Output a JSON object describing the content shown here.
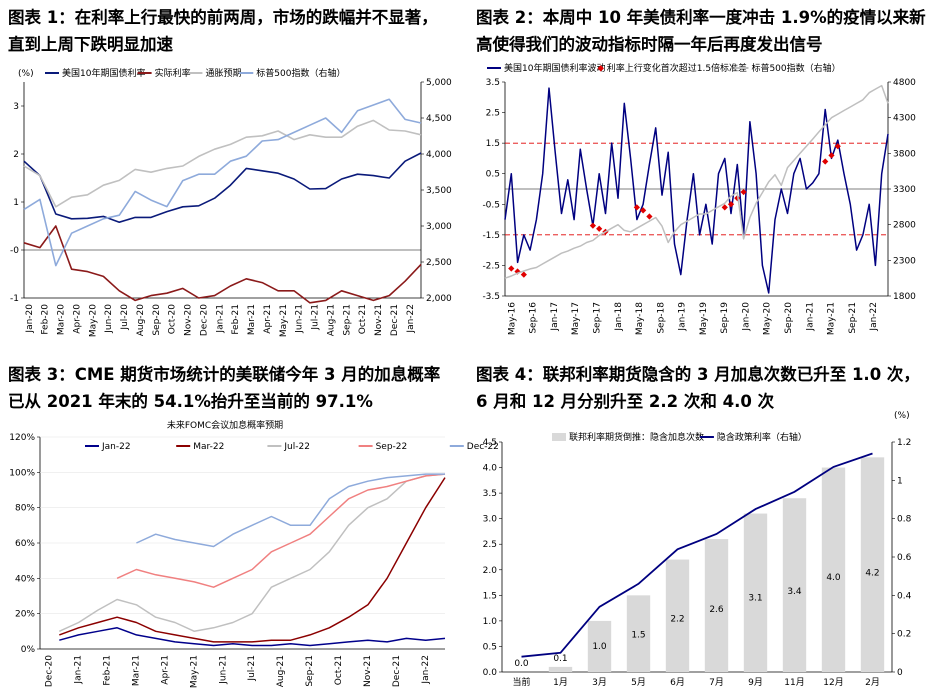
{
  "panels": {
    "p1": {
      "title_l1": "图表 1：在利率上行最快的前两周，市场的跌幅并不显著，",
      "title_l2": "直到上周下跌明显加速"
    },
    "p2": {
      "title_l1": "图表 2：本周中 10 年美债利率一度冲击 1.9%的疫情以来新",
      "title_l2": "高使得我们的波动指标时隔一年后再度发出信号"
    },
    "p3": {
      "title_l1": "图表 3：CME 期货市场统计的美联储今年 3 月的加息概率",
      "title_l2": "已从 2021 年末的 54.1%抬升至当前的 97.1%"
    },
    "p4": {
      "title_l1": "图表 4：联邦利率期货隐含的 3 月加息次数已升至 1.0 次，",
      "title_l2": "6 月和 12 月分别升至 2.2 次和 4.0 次"
    }
  },
  "chart_data": [
    {
      "id": "chart1",
      "type": "line",
      "unit_left": "(%)",
      "x_ticks": [
        "Jan-20",
        "Feb-20",
        "Mar-20",
        "Apr-20",
        "May-20",
        "Jun-20",
        "Jul-20",
        "Aug-20",
        "Sep-20",
        "Oct-20",
        "Nov-20",
        "Dec-20",
        "Jan-21",
        "Feb-21",
        "Mar-21",
        "Apr-21",
        "May-21",
        "Jun-21",
        "Jul-21",
        "Aug-21",
        "Sep-21",
        "Oct-21",
        "Nov-21",
        "Dec-21",
        "Jan-22"
      ],
      "ylim_left": [
        -1,
        3.5
      ],
      "yticks_left": [
        -1,
        0,
        1,
        2,
        3
      ],
      "ytick_labels_left": [
        "-1",
        "-0",
        "1",
        "2",
        "3"
      ],
      "ylim_right": [
        2000,
        5000
      ],
      "yticks_right": [
        2000,
        2500,
        3000,
        3500,
        4000,
        4500,
        5000
      ],
      "ytick_labels_right": [
        "2,000",
        "2,500",
        "3,000",
        "3,500",
        "4,000",
        "4,500",
        "5,000"
      ],
      "series": [
        {
          "name": "美国10年期国债利率",
          "axis": "left",
          "color": "#0a1a7a",
          "values": [
            1.85,
            1.55,
            0.75,
            0.65,
            0.66,
            0.7,
            0.58,
            0.68,
            0.68,
            0.8,
            0.9,
            0.92,
            1.08,
            1.35,
            1.7,
            1.65,
            1.6,
            1.48,
            1.27,
            1.28,
            1.48,
            1.58,
            1.55,
            1.5,
            1.85,
            2.02
          ]
        },
        {
          "name": "实际利率",
          "axis": "left",
          "color": "#8b1a1a",
          "values": [
            0.15,
            0.05,
            0.5,
            -0.4,
            -0.45,
            -0.55,
            -0.85,
            -1.05,
            -0.95,
            -0.9,
            -0.8,
            -1.0,
            -0.95,
            -0.75,
            -0.6,
            -0.68,
            -0.85,
            -0.85,
            -1.1,
            -1.05,
            -0.85,
            -0.95,
            -1.05,
            -0.95,
            -0.65,
            -0.3
          ]
        },
        {
          "name": "通胀预期",
          "axis": "left",
          "color": "#c0c0c0",
          "values": [
            1.75,
            1.55,
            0.9,
            1.1,
            1.15,
            1.35,
            1.45,
            1.68,
            1.62,
            1.7,
            1.75,
            1.95,
            2.1,
            2.2,
            2.35,
            2.38,
            2.48,
            2.3,
            2.4,
            2.35,
            2.35,
            2.58,
            2.7,
            2.5,
            2.48,
            2.4
          ]
        },
        {
          "name": "标普500指数（右轴）",
          "axis": "right",
          "color": "#8eaadb",
          "values": [
            3230,
            3370,
            2450,
            2900,
            3000,
            3100,
            3150,
            3480,
            3360,
            3270,
            3630,
            3720,
            3720,
            3900,
            3970,
            4180,
            4200,
            4300,
            4400,
            4500,
            4300,
            4600,
            4680,
            4760,
            4480,
            4430
          ]
        }
      ]
    },
    {
      "id": "chart2",
      "type": "line",
      "x_ticks": [
        "May-16",
        "Sep-16",
        "Jan-17",
        "May-17",
        "Sep-17",
        "Jan-18",
        "May-18",
        "Sep-18",
        "Jan-19",
        "May-19",
        "Sep-19",
        "Jan-20",
        "May-20",
        "Sep-20",
        "Jan-21",
        "May-21",
        "Sep-21",
        "Jan-22"
      ],
      "ylim_left": [
        -3.5,
        3.5
      ],
      "yticks_left": [
        -3.5,
        -2.5,
        -1.5,
        -0.5,
        0.5,
        1.5,
        2.5,
        3.5
      ],
      "ytick_labels_left": [
        "-3.5",
        "-2.5",
        "-1.5",
        "-0.5",
        "0.5",
        "1.5",
        "2.5",
        "3.5"
      ],
      "ylim_right": [
        1800,
        4800
      ],
      "yticks_right": [
        1800,
        2300,
        2800,
        3300,
        3800,
        4300,
        4800
      ],
      "ytick_labels_right": [
        "1800",
        "2300",
        "2800",
        "3300",
        "3800",
        "4300",
        "4800"
      ],
      "threshold_lines": [
        1.5,
        -1.5
      ],
      "series": [
        {
          "name": "美国10年期国债利率波动",
          "axis": "left",
          "color": "#000080",
          "values": [
            -1.0,
            0.5,
            -2.4,
            -1.5,
            -2.0,
            -1.0,
            0.5,
            3.3,
            1.2,
            -0.8,
            0.3,
            -1.0,
            1.3,
            0.0,
            -1.2,
            0.5,
            -0.8,
            1.5,
            -0.3,
            2.8,
            1.0,
            -1.0,
            -0.5,
            0.8,
            2.0,
            -0.2,
            1.2,
            -1.8,
            -2.8,
            -1.0,
            0.5,
            -1.5,
            -0.5,
            -1.8,
            0.5,
            1.0,
            -0.8,
            0.8,
            -1.5,
            2.2,
            0.5,
            -2.5,
            -3.4,
            -1.0,
            0.0,
            -0.8,
            0.5,
            1.0,
            0.0,
            0.2,
            0.5,
            2.6,
            1.0,
            1.6,
            0.5,
            -0.5,
            -2.0,
            -1.5,
            -0.5,
            -2.5,
            0.5,
            1.8
          ]
        },
        {
          "name": "利率上行变化首次超过1.5倍标准差",
          "axis": "left",
          "color": "#e00000",
          "type": "marker",
          "x_index": [
            1,
            2,
            3,
            14,
            15,
            16,
            21,
            22,
            23,
            35,
            36,
            37,
            38,
            51,
            52,
            53
          ],
          "values": [
            -2.6,
            -2.7,
            -2.8,
            -1.2,
            -1.3,
            -1.4,
            -0.6,
            -0.7,
            -0.9,
            -0.6,
            -0.5,
            -0.3,
            -0.1,
            0.9,
            1.1,
            1.4
          ]
        },
        {
          "name": "标普500指数（右轴）",
          "axis": "right",
          "color": "#bfbfbf",
          "values": [
            2050,
            2080,
            2120,
            2150,
            2180,
            2200,
            2250,
            2300,
            2350,
            2400,
            2430,
            2470,
            2500,
            2550,
            2580,
            2650,
            2700,
            2750,
            2800,
            2720,
            2700,
            2750,
            2800,
            2850,
            2900,
            2780,
            2550,
            2700,
            2800,
            2850,
            2900,
            2950,
            2950,
            3000,
            3050,
            3100,
            3200,
            3250,
            2600,
            2900,
            3100,
            3250,
            3400,
            3500,
            3350,
            3600,
            3700,
            3800,
            3900,
            4000,
            4100,
            4200,
            4300,
            4350,
            4400,
            4450,
            4500,
            4550,
            4650,
            4700,
            4750,
            4500
          ]
        }
      ]
    },
    {
      "id": "chart3",
      "type": "line",
      "title": "未来FOMC会议加息概率预期",
      "x_ticks": [
        "Dec-20",
        "Jan-21",
        "Feb-21",
        "Mar-21",
        "Apr-21",
        "May-21",
        "Jun-21",
        "Jul-21",
        "Aug-21",
        "Sep-21",
        "Oct-21",
        "Nov-21",
        "Dec-21",
        "Jan-22"
      ],
      "ylim": [
        0,
        120
      ],
      "yticks": [
        0,
        20,
        40,
        60,
        80,
        100,
        120
      ],
      "ytick_labels": [
        "0%",
        "20%",
        "40%",
        "60%",
        "80%",
        "100%",
        "120%"
      ],
      "series": [
        {
          "name": "Jan-22",
          "color": "#00008b",
          "values": [
            null,
            5,
            8,
            10,
            12,
            8,
            6,
            4,
            3,
            2,
            3,
            2,
            2,
            3,
            2,
            3,
            4,
            5,
            4,
            6,
            5,
            6
          ]
        },
        {
          "name": "Mar-22",
          "color": "#8b0000",
          "values": [
            null,
            8,
            12,
            15,
            18,
            15,
            10,
            8,
            6,
            4,
            4,
            4,
            5,
            5,
            8,
            12,
            18,
            25,
            40,
            60,
            80,
            97
          ]
        },
        {
          "name": "Jul-22",
          "color": "#c0c0c0",
          "values": [
            null,
            10,
            15,
            22,
            28,
            25,
            18,
            15,
            10,
            12,
            15,
            20,
            35,
            40,
            45,
            55,
            70,
            80,
            85,
            95,
            98,
            99
          ]
        },
        {
          "name": "Sep-22",
          "color": "#f08080",
          "values": [
            null,
            null,
            null,
            null,
            40,
            45,
            42,
            40,
            38,
            35,
            40,
            45,
            55,
            60,
            65,
            75,
            85,
            90,
            92,
            95,
            98,
            99
          ]
        },
        {
          "name": "Dec-22",
          "color": "#8eaadb",
          "values": [
            null,
            null,
            null,
            null,
            null,
            60,
            65,
            62,
            60,
            58,
            65,
            70,
            75,
            70,
            70,
            85,
            92,
            95,
            97,
            98,
            99,
            99
          ]
        }
      ]
    },
    {
      "id": "chart4",
      "type": "bar",
      "categories": [
        "当前",
        "1月",
        "3月",
        "5月",
        "6月",
        "7月",
        "9月",
        "11月",
        "12月",
        "2月"
      ],
      "ylim_left": [
        0,
        4.5
      ],
      "yticks_left": [
        0.0,
        0.5,
        1.0,
        1.5,
        2.0,
        2.5,
        3.0,
        3.5,
        4.0,
        4.5
      ],
      "ytick_labels_left": [
        "0.0",
        "0.5",
        "1.0",
        "1.5",
        "2.0",
        "2.5",
        "3.0",
        "3.5",
        "4.0",
        "4.5"
      ],
      "unit_right": "(%)",
      "ylim_right": [
        0,
        1.2
      ],
      "yticks_right": [
        0,
        0.2,
        0.4,
        0.6,
        0.8,
        1.0,
        1.2
      ],
      "ytick_labels_right": [
        "0",
        "0.2",
        "0.4",
        "0.6",
        "0.8",
        "1",
        "1.2"
      ],
      "series": [
        {
          "name": "联邦利率期货倒推：隐含加息次数",
          "type": "bar",
          "axis": "left",
          "color": "#d9d9d9",
          "values": [
            0.0,
            0.1,
            1.0,
            1.5,
            2.2,
            2.6,
            3.1,
            3.4,
            4.0,
            4.2
          ],
          "labels": [
            "0.0",
            "0.1",
            "1.0",
            "1.5",
            "2.2",
            "2.6",
            "3.1",
            "3.4",
            "4.0",
            "4.2"
          ]
        },
        {
          "name": "隐含政策利率（右轴）",
          "type": "line",
          "axis": "right",
          "color": "#000080",
          "values": [
            0.08,
            0.1,
            0.34,
            0.46,
            0.64,
            0.72,
            0.85,
            0.94,
            1.07,
            1.14
          ]
        }
      ]
    }
  ]
}
